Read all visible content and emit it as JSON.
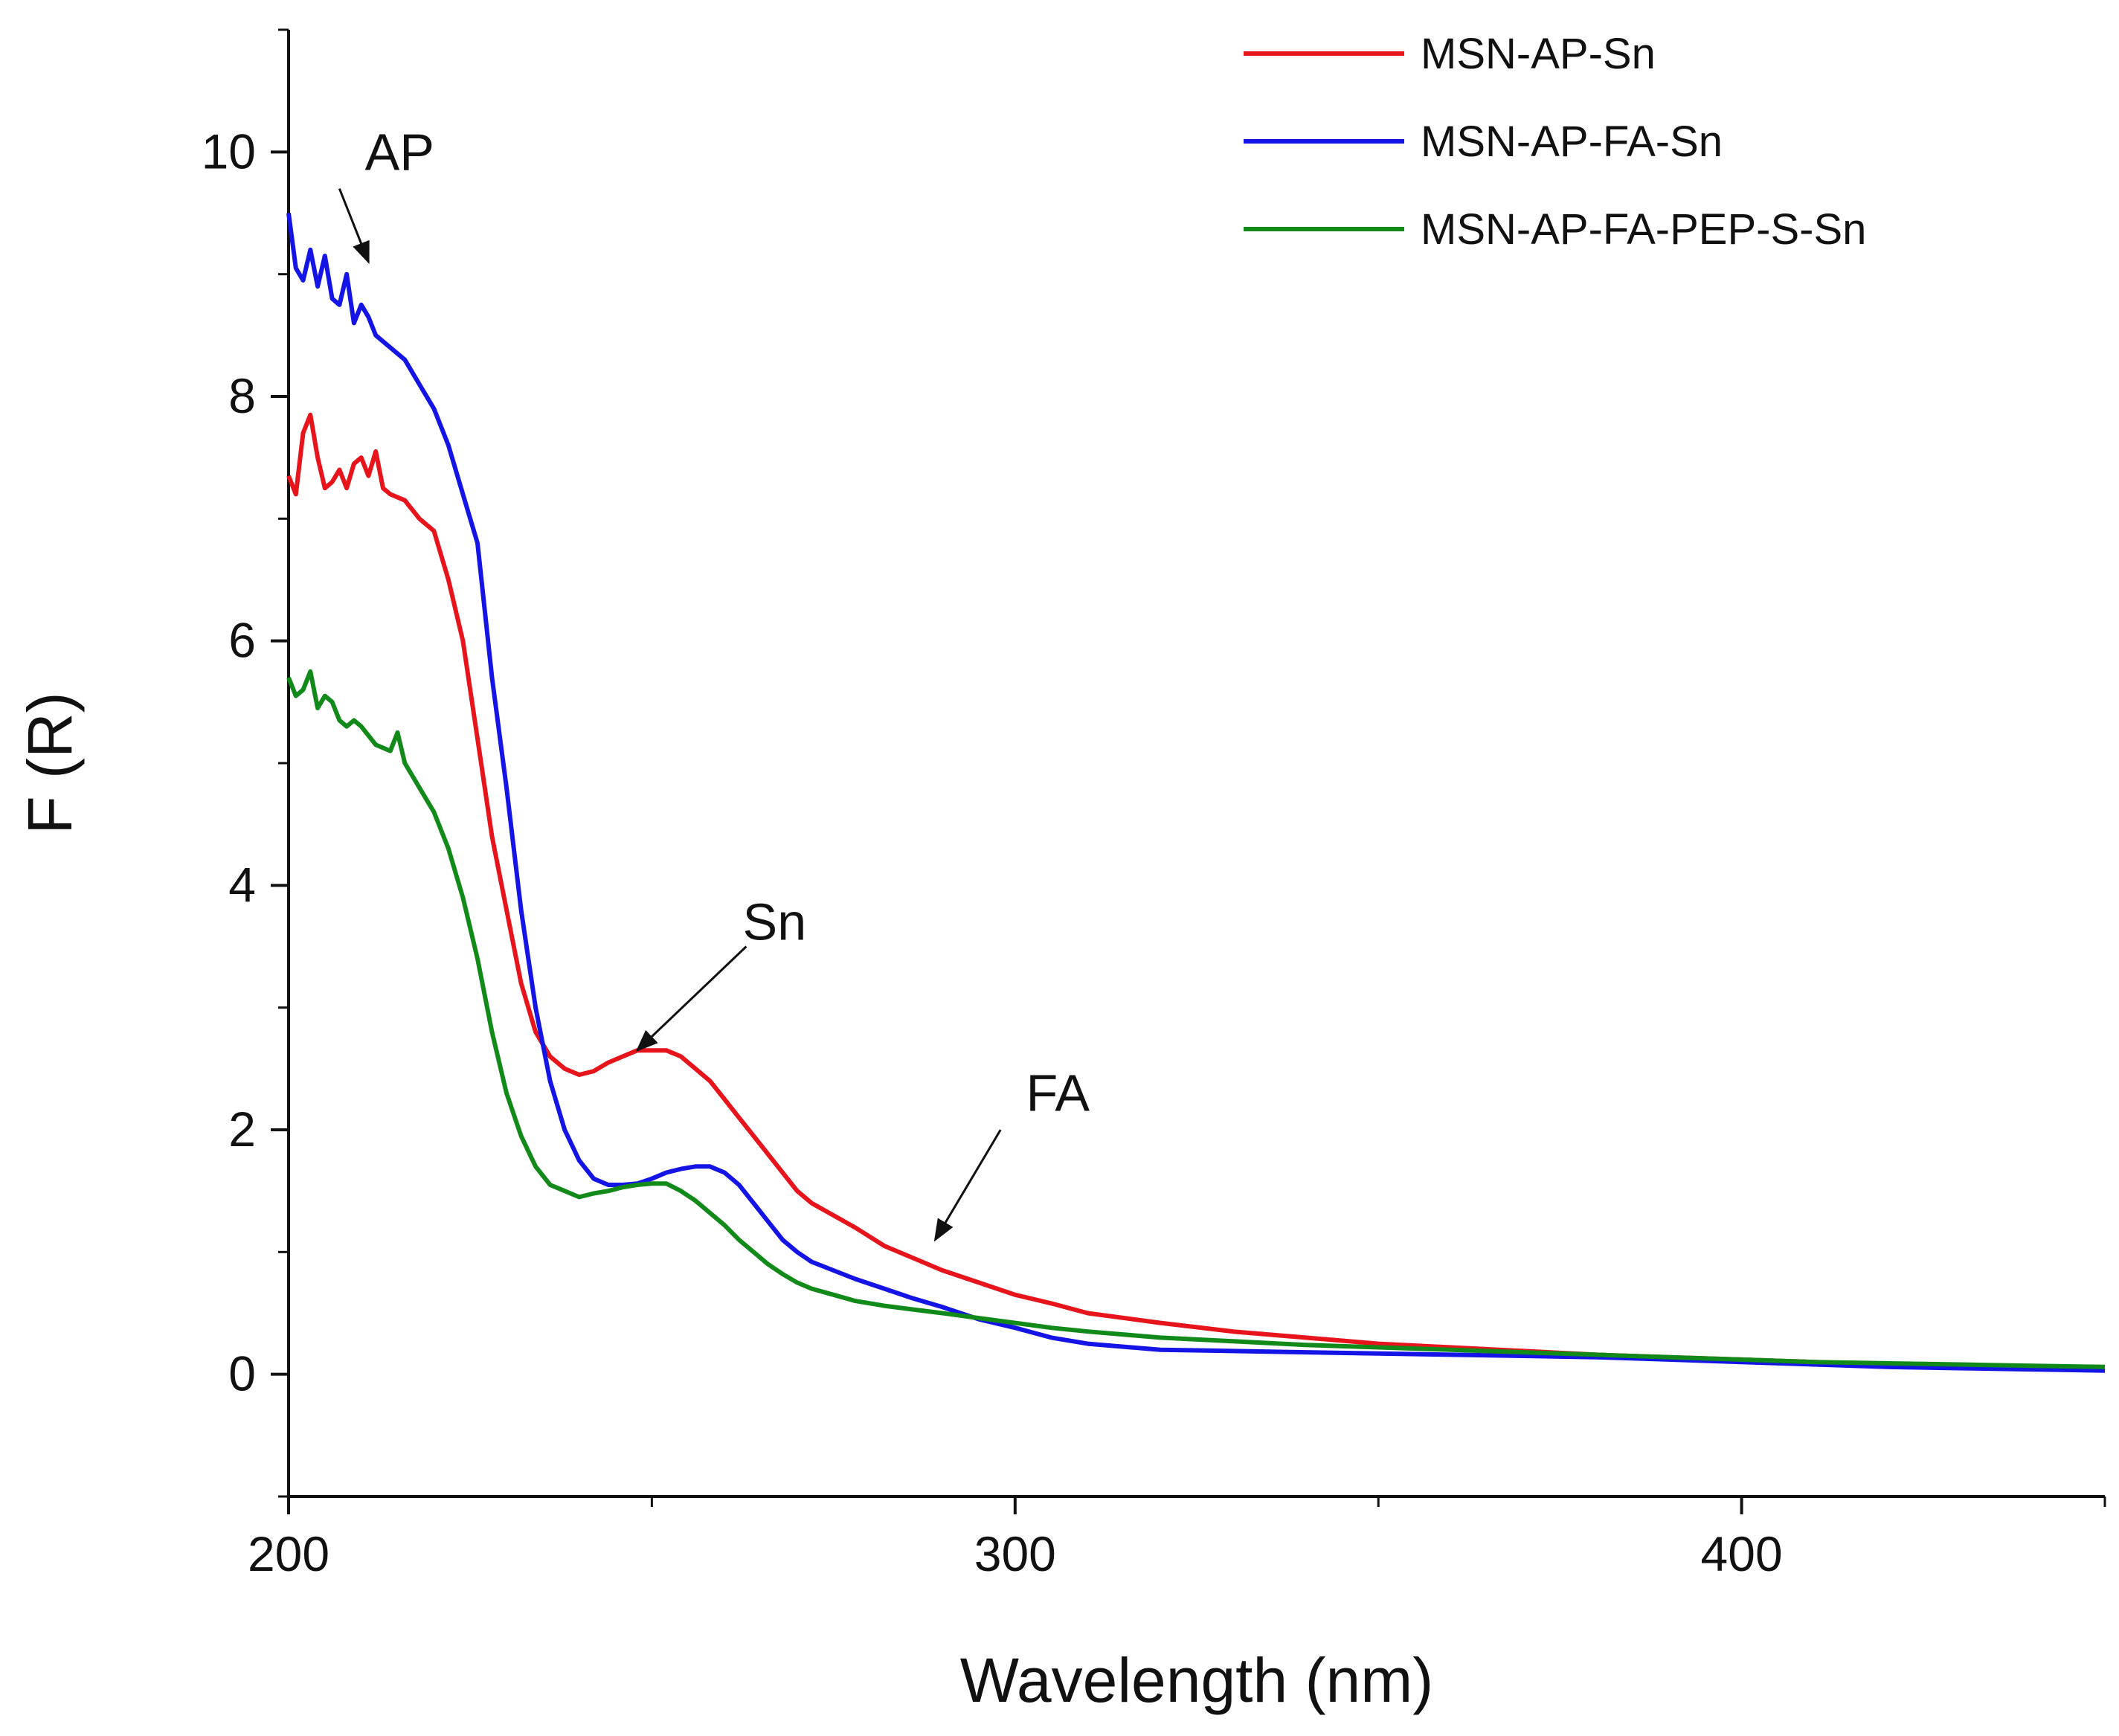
{
  "chart_data": {
    "type": "line",
    "title": "",
    "xlabel": "Wavelength (nm)",
    "ylabel": "F (R)",
    "xlim": [
      200,
      450
    ],
    "ylim": [
      -1,
      11
    ],
    "xticks": [
      200,
      300,
      400
    ],
    "xticks_minor": [
      250,
      350
    ],
    "yticks": [
      0,
      2,
      4,
      6,
      8,
      10
    ],
    "grid": false,
    "legend": "top-right",
    "series": [
      {
        "name": "MSN-AP-Sn",
        "color": "#e8141c",
        "x": [
          200,
          201,
          202,
          203,
          204,
          205,
          206,
          207,
          208,
          209,
          210,
          211,
          212,
          213,
          214,
          216,
          218,
          220,
          222,
          224,
          226,
          228,
          230,
          232,
          234,
          236,
          238,
          240,
          242,
          244,
          246,
          248,
          250,
          252,
          254,
          256,
          258,
          260,
          262,
          264,
          266,
          268,
          270,
          272,
          275,
          278,
          282,
          286,
          290,
          295,
          300,
          305,
          310,
          320,
          330,
          340,
          350,
          360,
          370,
          380,
          390,
          400,
          410,
          420,
          430,
          440,
          450
        ],
        "y": [
          7.35,
          7.2,
          7.7,
          7.85,
          7.5,
          7.25,
          7.3,
          7.4,
          7.25,
          7.45,
          7.5,
          7.35,
          7.55,
          7.25,
          7.2,
          7.15,
          7.0,
          6.9,
          6.5,
          6.0,
          5.2,
          4.4,
          3.8,
          3.2,
          2.8,
          2.6,
          2.5,
          2.45,
          2.48,
          2.55,
          2.6,
          2.65,
          2.65,
          2.65,
          2.6,
          2.5,
          2.4,
          2.25,
          2.1,
          1.95,
          1.8,
          1.65,
          1.5,
          1.4,
          1.3,
          1.2,
          1.05,
          0.95,
          0.85,
          0.75,
          0.65,
          0.58,
          0.5,
          0.42,
          0.35,
          0.3,
          0.25,
          0.22,
          0.19,
          0.16,
          0.14,
          0.12,
          0.1,
          0.08,
          0.07,
          0.06,
          0.05
        ]
      },
      {
        "name": "MSN-AP-FA-Sn",
        "color": "#1414e6",
        "x": [
          200,
          201,
          202,
          203,
          204,
          205,
          206,
          207,
          208,
          209,
          210,
          211,
          212,
          214,
          216,
          218,
          220,
          222,
          224,
          226,
          228,
          230,
          232,
          234,
          236,
          238,
          240,
          242,
          244,
          246,
          248,
          250,
          252,
          254,
          256,
          258,
          260,
          262,
          264,
          266,
          268,
          270,
          272,
          275,
          278,
          282,
          286,
          290,
          295,
          300,
          305,
          310,
          320,
          330,
          340,
          350,
          360,
          370,
          380,
          390,
          400,
          410,
          420,
          430,
          440,
          450
        ],
        "y": [
          9.5,
          9.05,
          8.95,
          9.2,
          8.9,
          9.15,
          8.8,
          8.75,
          9.0,
          8.6,
          8.75,
          8.65,
          8.5,
          8.4,
          8.3,
          8.1,
          7.9,
          7.6,
          7.2,
          6.8,
          5.7,
          4.8,
          3.8,
          3.0,
          2.4,
          2.0,
          1.75,
          1.6,
          1.55,
          1.55,
          1.56,
          1.6,
          1.65,
          1.68,
          1.7,
          1.7,
          1.65,
          1.55,
          1.4,
          1.25,
          1.1,
          1.0,
          0.92,
          0.85,
          0.78,
          0.7,
          0.62,
          0.55,
          0.45,
          0.38,
          0.3,
          0.25,
          0.2,
          0.19,
          0.18,
          0.17,
          0.16,
          0.15,
          0.14,
          0.12,
          0.1,
          0.08,
          0.06,
          0.05,
          0.04,
          0.03
        ]
      },
      {
        "name": "MSN-AP-FA-PEP-S-Sn",
        "color": "#128a1a",
        "x": [
          200,
          201,
          202,
          203,
          204,
          205,
          206,
          207,
          208,
          209,
          210,
          212,
          214,
          215,
          216,
          218,
          220,
          222,
          224,
          226,
          228,
          230,
          232,
          234,
          236,
          238,
          240,
          242,
          244,
          246,
          248,
          250,
          252,
          254,
          256,
          258,
          260,
          262,
          264,
          266,
          268,
          270,
          272,
          275,
          278,
          282,
          286,
          290,
          295,
          300,
          305,
          310,
          320,
          330,
          340,
          350,
          360,
          370,
          380,
          390,
          400,
          410,
          420,
          430,
          440,
          450
        ],
        "y": [
          5.7,
          5.55,
          5.6,
          5.75,
          5.45,
          5.55,
          5.5,
          5.35,
          5.3,
          5.35,
          5.3,
          5.15,
          5.1,
          5.25,
          5.0,
          4.8,
          4.6,
          4.3,
          3.9,
          3.4,
          2.8,
          2.3,
          1.95,
          1.7,
          1.55,
          1.5,
          1.45,
          1.48,
          1.5,
          1.53,
          1.55,
          1.56,
          1.56,
          1.5,
          1.42,
          1.32,
          1.22,
          1.1,
          1.0,
          0.9,
          0.82,
          0.75,
          0.7,
          0.65,
          0.6,
          0.56,
          0.53,
          0.5,
          0.46,
          0.42,
          0.38,
          0.35,
          0.3,
          0.27,
          0.24,
          0.22,
          0.2,
          0.18,
          0.16,
          0.14,
          0.12,
          0.1,
          0.09,
          0.08,
          0.07,
          0.06
        ]
      }
    ],
    "annotations": [
      {
        "text": "AP",
        "label_at": [
          210.5,
          10.0
        ],
        "arrow_from": [
          207,
          9.7
        ],
        "arrow_to": [
          211,
          9.1
        ]
      },
      {
        "text": "Sn",
        "label_at": [
          262.5,
          3.7
        ],
        "arrow_from": [
          263,
          3.5
        ],
        "arrow_to": [
          248,
          2.65
        ]
      },
      {
        "text": "FA",
        "label_at": [
          301.5,
          2.3
        ],
        "arrow_from": [
          298,
          2.0
        ],
        "arrow_to": [
          289,
          1.1
        ]
      }
    ]
  }
}
